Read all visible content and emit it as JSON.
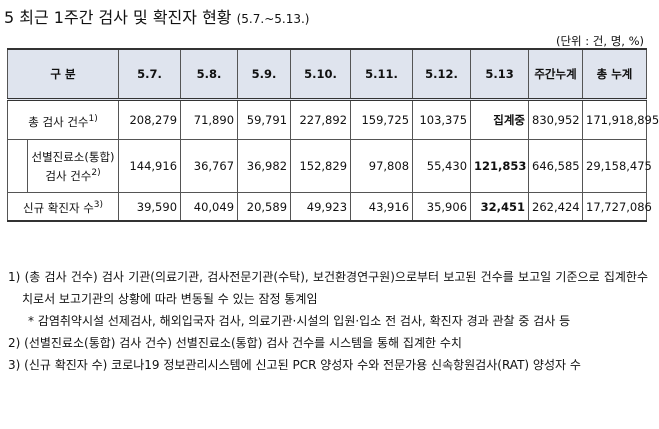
{
  "title": {
    "text": "5 최근 1주간 검사 및 확진자 현황",
    "period": "(5.7.~5.13.)"
  },
  "unit": "(단위 : 건, 명, %)",
  "table": {
    "header": [
      "구 분",
      "5.7.",
      "5.8.",
      "5.9.",
      "5.10.",
      "5.11.",
      "5.12.",
      "5.13",
      "주간누계",
      "총 누계"
    ],
    "rows": [
      {
        "label": "총 검사 건수",
        "note": "1)",
        "cells": [
          "208,279",
          "71,890",
          "59,791",
          "227,892",
          "159,725",
          "103,375",
          "집계중",
          "830,952",
          "171,918,895"
        ]
      },
      {
        "label": "선별진료소(통합) 검사 건수",
        "note": "2)",
        "cells": [
          "144,916",
          "36,767",
          "36,982",
          "152,829",
          "97,808",
          "55,430",
          "121,853",
          "646,585",
          "29,158,475"
        ]
      },
      {
        "label": "신규 확진자 수",
        "note": "3)",
        "cells": [
          "39,590",
          "40,049",
          "20,589",
          "49,923",
          "43,916",
          "35,906",
          "32,451",
          "262,424",
          "17,727,086"
        ]
      }
    ]
  },
  "notes": [
    {
      "text": "1) (총 검사 건수) 검사 기관(의료기관, 검사전문기관(수탁), 보건환경연구원)으로부터 보고된 건수를 보고일 기준으로 집계한수치로서 보고기관의 상황에 따라 변동될 수 있는 잠정 통계임",
      "sub": "* 감염취약시설 선제검사, 해외입국자 검사, 의료기관·시설의 입원·입소 전 검사, 확진자 경과 관찰 중 검사 등"
    },
    {
      "text": "2) (선별진료소(통합) 검사 건수) 선별진료소(통합) 검사 건수를 시스템을 통해 집계한 수치"
    },
    {
      "text": "3) (신규 확진자 수) 코로나19 정보관리시스템에 신고된 PCR 양성자 수와 전문가용 신속항원검사(RAT) 양성자 수"
    }
  ]
}
